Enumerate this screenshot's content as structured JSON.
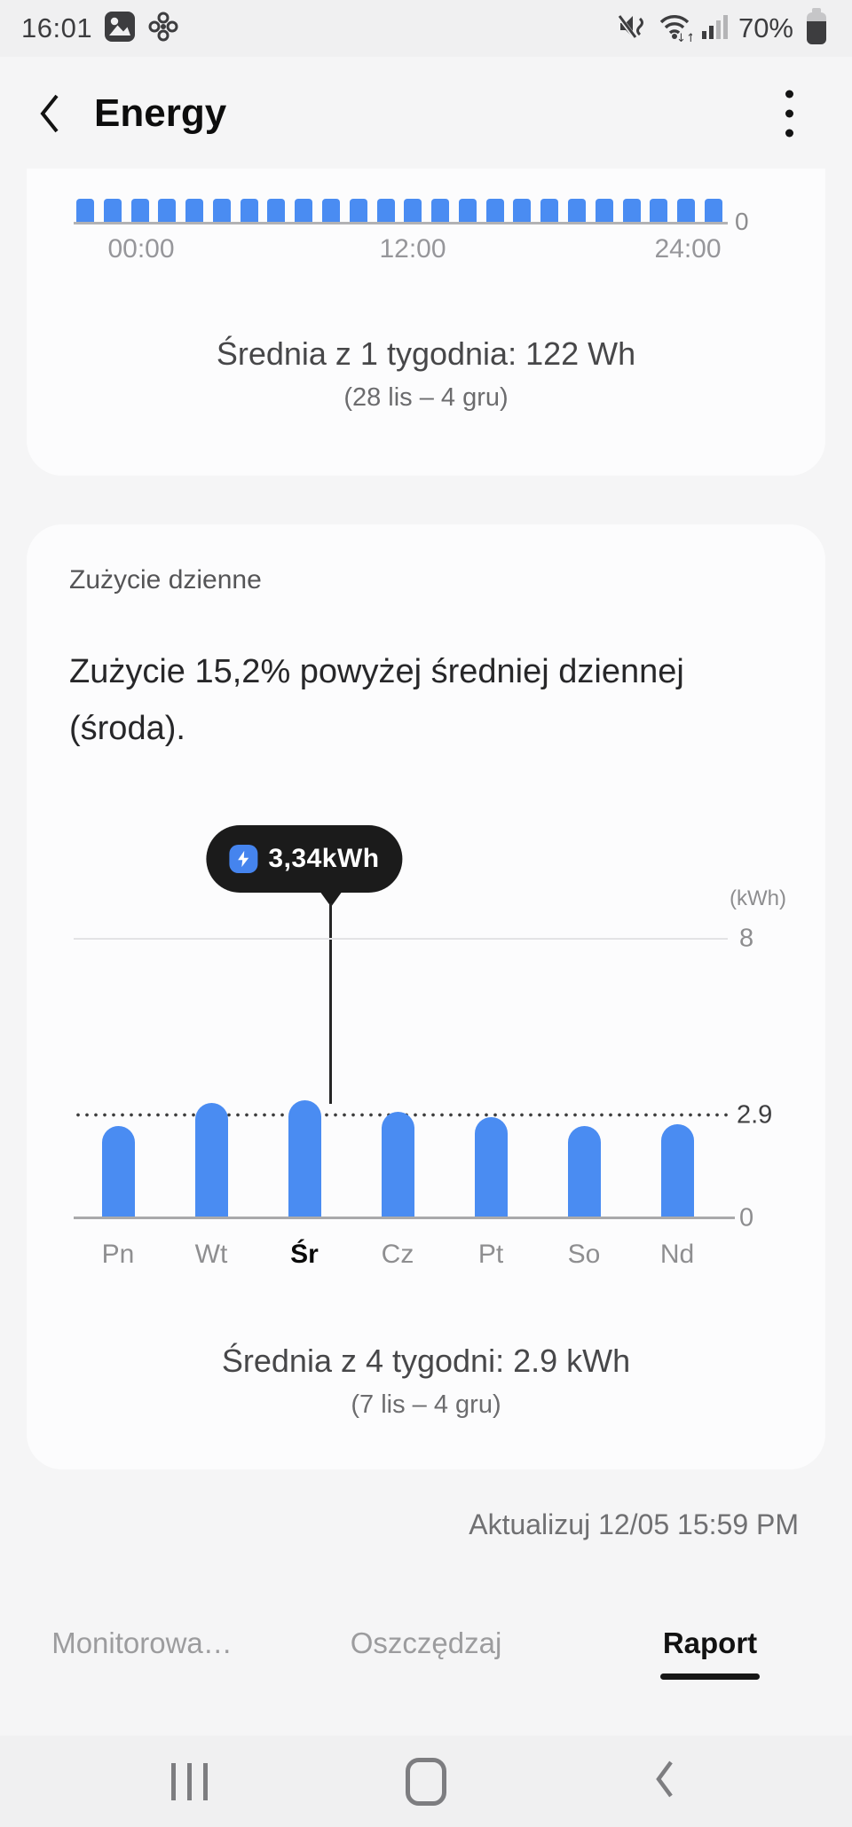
{
  "status_bar": {
    "time": "16:01",
    "battery_percent": "70%"
  },
  "header": {
    "title": "Energy"
  },
  "card_daily": {
    "section_label": "Zużycie dzienne",
    "headline": "Zużycie 15,2% powyżej średniej dziennej (środa)."
  },
  "update_label": "Aktualizuj 12/05 15:59 PM",
  "tabs": [
    {
      "name": "tab-monitoruj",
      "label": "Monitorowa…",
      "active": false
    },
    {
      "name": "tab-oszczedzaj",
      "label": "Oszczędzaj",
      "active": false
    },
    {
      "name": "tab-raport",
      "label": "Raport",
      "active": true
    }
  ],
  "chart_data": [
    {
      "id": "hourly-energy",
      "type": "bar",
      "x_ticks": [
        "00:00",
        "12:00",
        "24:00"
      ],
      "bar_count": 24,
      "values": [
        1,
        1,
        1,
        1,
        1,
        1,
        1,
        1,
        1,
        1,
        1,
        1,
        1,
        1,
        1,
        1,
        1,
        1,
        1,
        1,
        1,
        1,
        1,
        1
      ],
      "values_note": "24 hourly bars of uniform visible height; chart top clipped by scroll",
      "y_zero_label": "0",
      "caption": "Średnia z 1 tygodnia: 122 Wh",
      "caption_sub": "(28 lis – 4 gru)"
    },
    {
      "id": "daily-energy",
      "type": "bar",
      "unit": "(kWh)",
      "categories": [
        "Pn",
        "Wt",
        "Śr",
        "Cz",
        "Pt",
        "So",
        "Nd"
      ],
      "category_keys": [
        "pn",
        "wt",
        "sr",
        "cz",
        "pt",
        "so",
        "nd"
      ],
      "values": [
        2.6,
        3.25,
        3.34,
        3.0,
        2.85,
        2.6,
        2.65
      ],
      "selected_index": 2,
      "selected_value": 3.34,
      "selected_value_label": "3,34kWh",
      "average": 2.9,
      "average_label": "2.9",
      "gridline_values": [
        8
      ],
      "gridline_labels": [
        "8"
      ],
      "y_zero_label": "0",
      "ylim": [
        0,
        8.8
      ],
      "legend": "none",
      "grid": "single horizontal line at 8, dotted average line at 2.9",
      "caption": "Średnia z 4 tygodni: 2.9 kWh",
      "caption_sub": "(7 lis – 4 gru)"
    }
  ],
  "colors": {
    "accent_blue": "#4a8cf2",
    "tooltip_bg": "#1b1b1b",
    "tooltip_icon_bg": "#4584ee",
    "selected_day": "#0a0a0a",
    "active_tab": "#121212"
  }
}
